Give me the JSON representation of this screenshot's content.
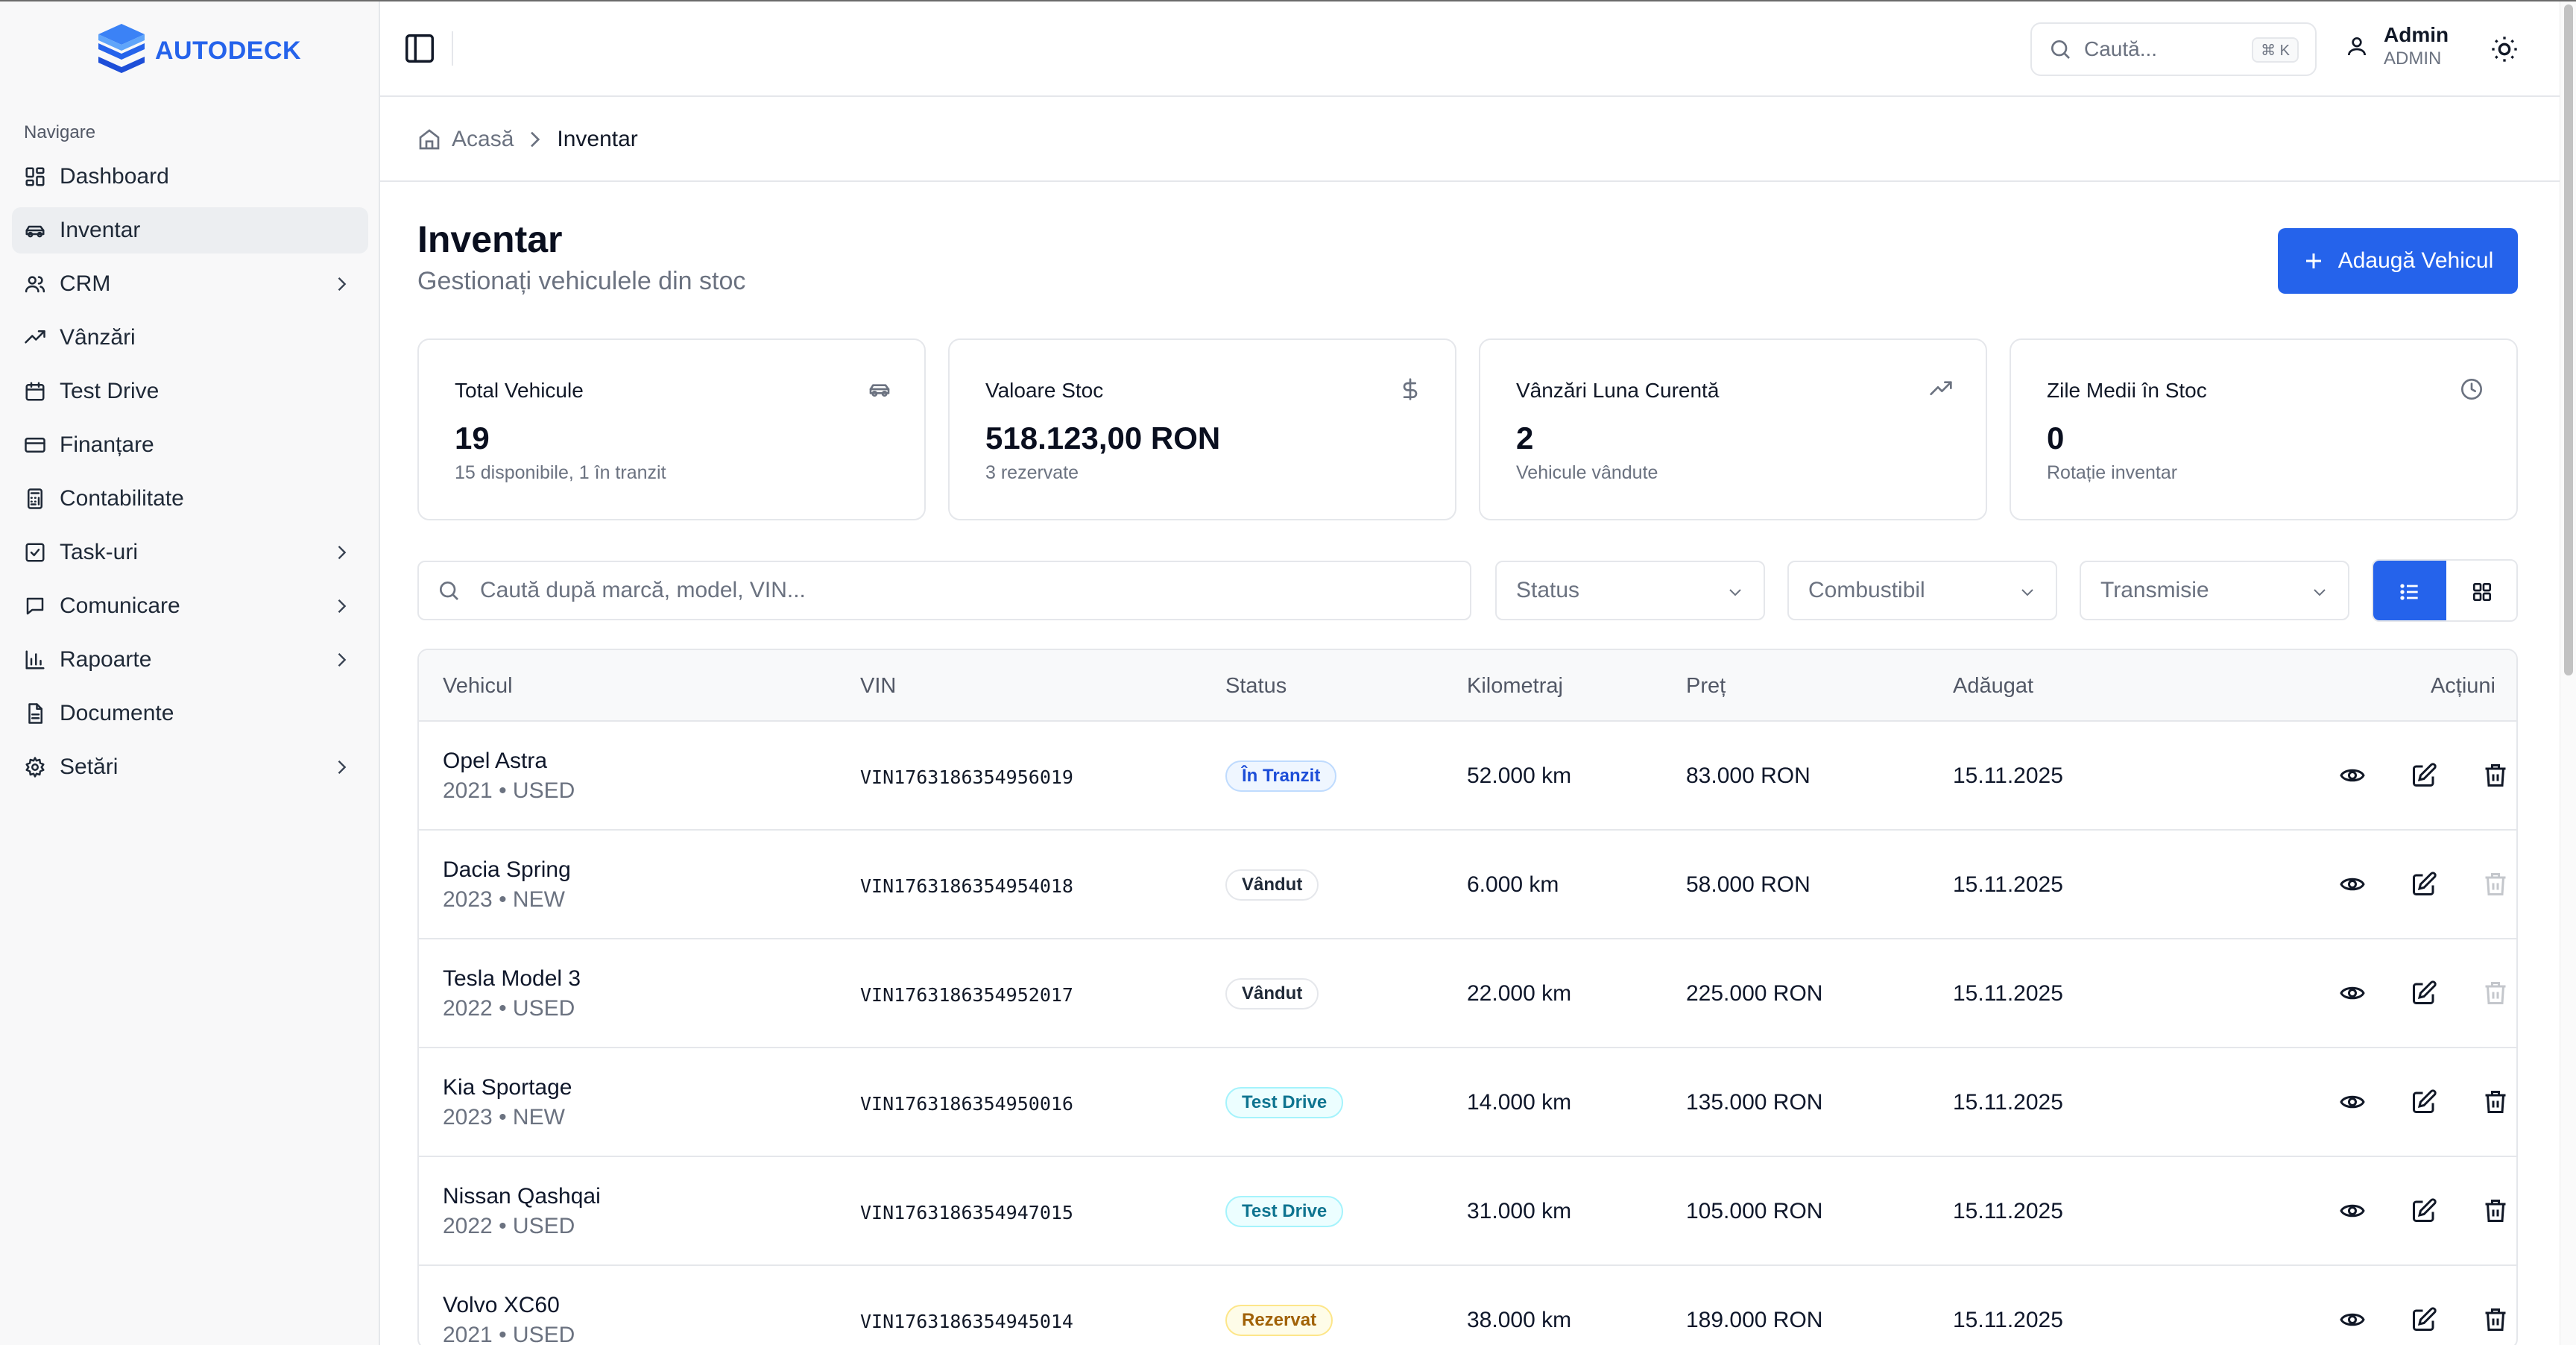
{
  "brand": {
    "name": "AUTODECK",
    "color": "#2563eb"
  },
  "sidebar": {
    "heading": "Navigare",
    "items": [
      {
        "label": "Dashboard",
        "icon": "dashboard-icon",
        "active": false,
        "expandable": false
      },
      {
        "label": "Inventar",
        "icon": "car-icon",
        "active": true,
        "expandable": false
      },
      {
        "label": "CRM",
        "icon": "users-icon",
        "active": false,
        "expandable": true
      },
      {
        "label": "Vânzări",
        "icon": "trending-up-icon",
        "active": false,
        "expandable": false
      },
      {
        "label": "Test Drive",
        "icon": "calendar-icon",
        "active": false,
        "expandable": false
      },
      {
        "label": "Finanțare",
        "icon": "credit-card-icon",
        "active": false,
        "expandable": false
      },
      {
        "label": "Contabilitate",
        "icon": "calculator-icon",
        "active": false,
        "expandable": false
      },
      {
        "label": "Task-uri",
        "icon": "checkbox-icon",
        "active": false,
        "expandable": true
      },
      {
        "label": "Comunicare",
        "icon": "message-icon",
        "active": false,
        "expandable": true
      },
      {
        "label": "Rapoarte",
        "icon": "bar-chart-icon",
        "active": false,
        "expandable": true
      },
      {
        "label": "Documente",
        "icon": "document-icon",
        "active": false,
        "expandable": false
      },
      {
        "label": "Setări",
        "icon": "gear-icon",
        "active": false,
        "expandable": true
      }
    ]
  },
  "header": {
    "search_placeholder": "Caută...",
    "search_shortcut": "⌘ K",
    "user_name": "Admin",
    "user_role": "ADMIN"
  },
  "breadcrumb": {
    "home": "Acasă",
    "current": "Inventar"
  },
  "page": {
    "title": "Inventar",
    "subtitle": "Gestionați vehiculele din stoc",
    "add_button": "Adaugă Vehicul"
  },
  "stats": [
    {
      "label": "Total Vehicule",
      "value": "19",
      "sub": "15 disponibile, 1 în tranzit",
      "icon": "car-icon"
    },
    {
      "label": "Valoare Stoc",
      "value": "518.123,00 RON",
      "sub": "3 rezervate",
      "icon": "dollar-icon"
    },
    {
      "label": "Vânzări Luna Curentă",
      "value": "2",
      "sub": "Vehicule vândute",
      "icon": "trending-up-icon"
    },
    {
      "label": "Zile Medii în Stoc",
      "value": "0",
      "sub": "Rotație inventar",
      "icon": "clock-icon"
    }
  ],
  "filters": {
    "search_placeholder": "Caută după marcă, model, VIN...",
    "status": "Status",
    "fuel": "Combustibil",
    "transmission": "Transmisie"
  },
  "table": {
    "columns": [
      "Vehicul",
      "VIN",
      "Status",
      "Kilometraj",
      "Preț",
      "Adăugat",
      "Acțiuni"
    ],
    "rows": [
      {
        "name": "Opel Astra",
        "meta": "2021 • USED",
        "vin": "VIN1763186354956019",
        "status": "În Tranzit",
        "km": "52.000 km",
        "price": "83.000 RON",
        "date": "15.11.2025",
        "delete_enabled": true
      },
      {
        "name": "Dacia Spring",
        "meta": "2023 • NEW",
        "vin": "VIN1763186354954018",
        "status": "Vândut",
        "km": "6.000 km",
        "price": "58.000 RON",
        "date": "15.11.2025",
        "delete_enabled": false
      },
      {
        "name": "Tesla Model 3",
        "meta": "2022 • USED",
        "vin": "VIN1763186354952017",
        "status": "Vândut",
        "km": "22.000 km",
        "price": "225.000 RON",
        "date": "15.11.2025",
        "delete_enabled": false
      },
      {
        "name": "Kia Sportage",
        "meta": "2023 • NEW",
        "vin": "VIN1763186354950016",
        "status": "Test Drive",
        "km": "14.000 km",
        "price": "135.000 RON",
        "date": "15.11.2025",
        "delete_enabled": true
      },
      {
        "name": "Nissan Qashqai",
        "meta": "2022 • USED",
        "vin": "VIN1763186354947015",
        "status": "Test Drive",
        "km": "31.000 km",
        "price": "105.000 RON",
        "date": "15.11.2025",
        "delete_enabled": true
      },
      {
        "name": "Volvo XC60",
        "meta": "2021 • USED",
        "vin": "VIN1763186354945014",
        "status": "Rezervat",
        "km": "38.000 km",
        "price": "189.000 RON",
        "date": "15.11.2025",
        "delete_enabled": true
      }
    ]
  },
  "status_colors": {
    "În Tranzit": {
      "bg": "#eff6ff",
      "border": "#bfdbfe",
      "text": "#1d4ed8"
    },
    "Vândut": {
      "bg": "#ffffff",
      "border": "#e5e7eb",
      "text": "#1f2937"
    },
    "Test Drive": {
      "bg": "#ecfeff",
      "border": "#a5f3fc",
      "text": "#0e7490"
    },
    "Rezervat": {
      "bg": "#fefce8",
      "border": "#fde68a",
      "text": "#a16207"
    }
  }
}
